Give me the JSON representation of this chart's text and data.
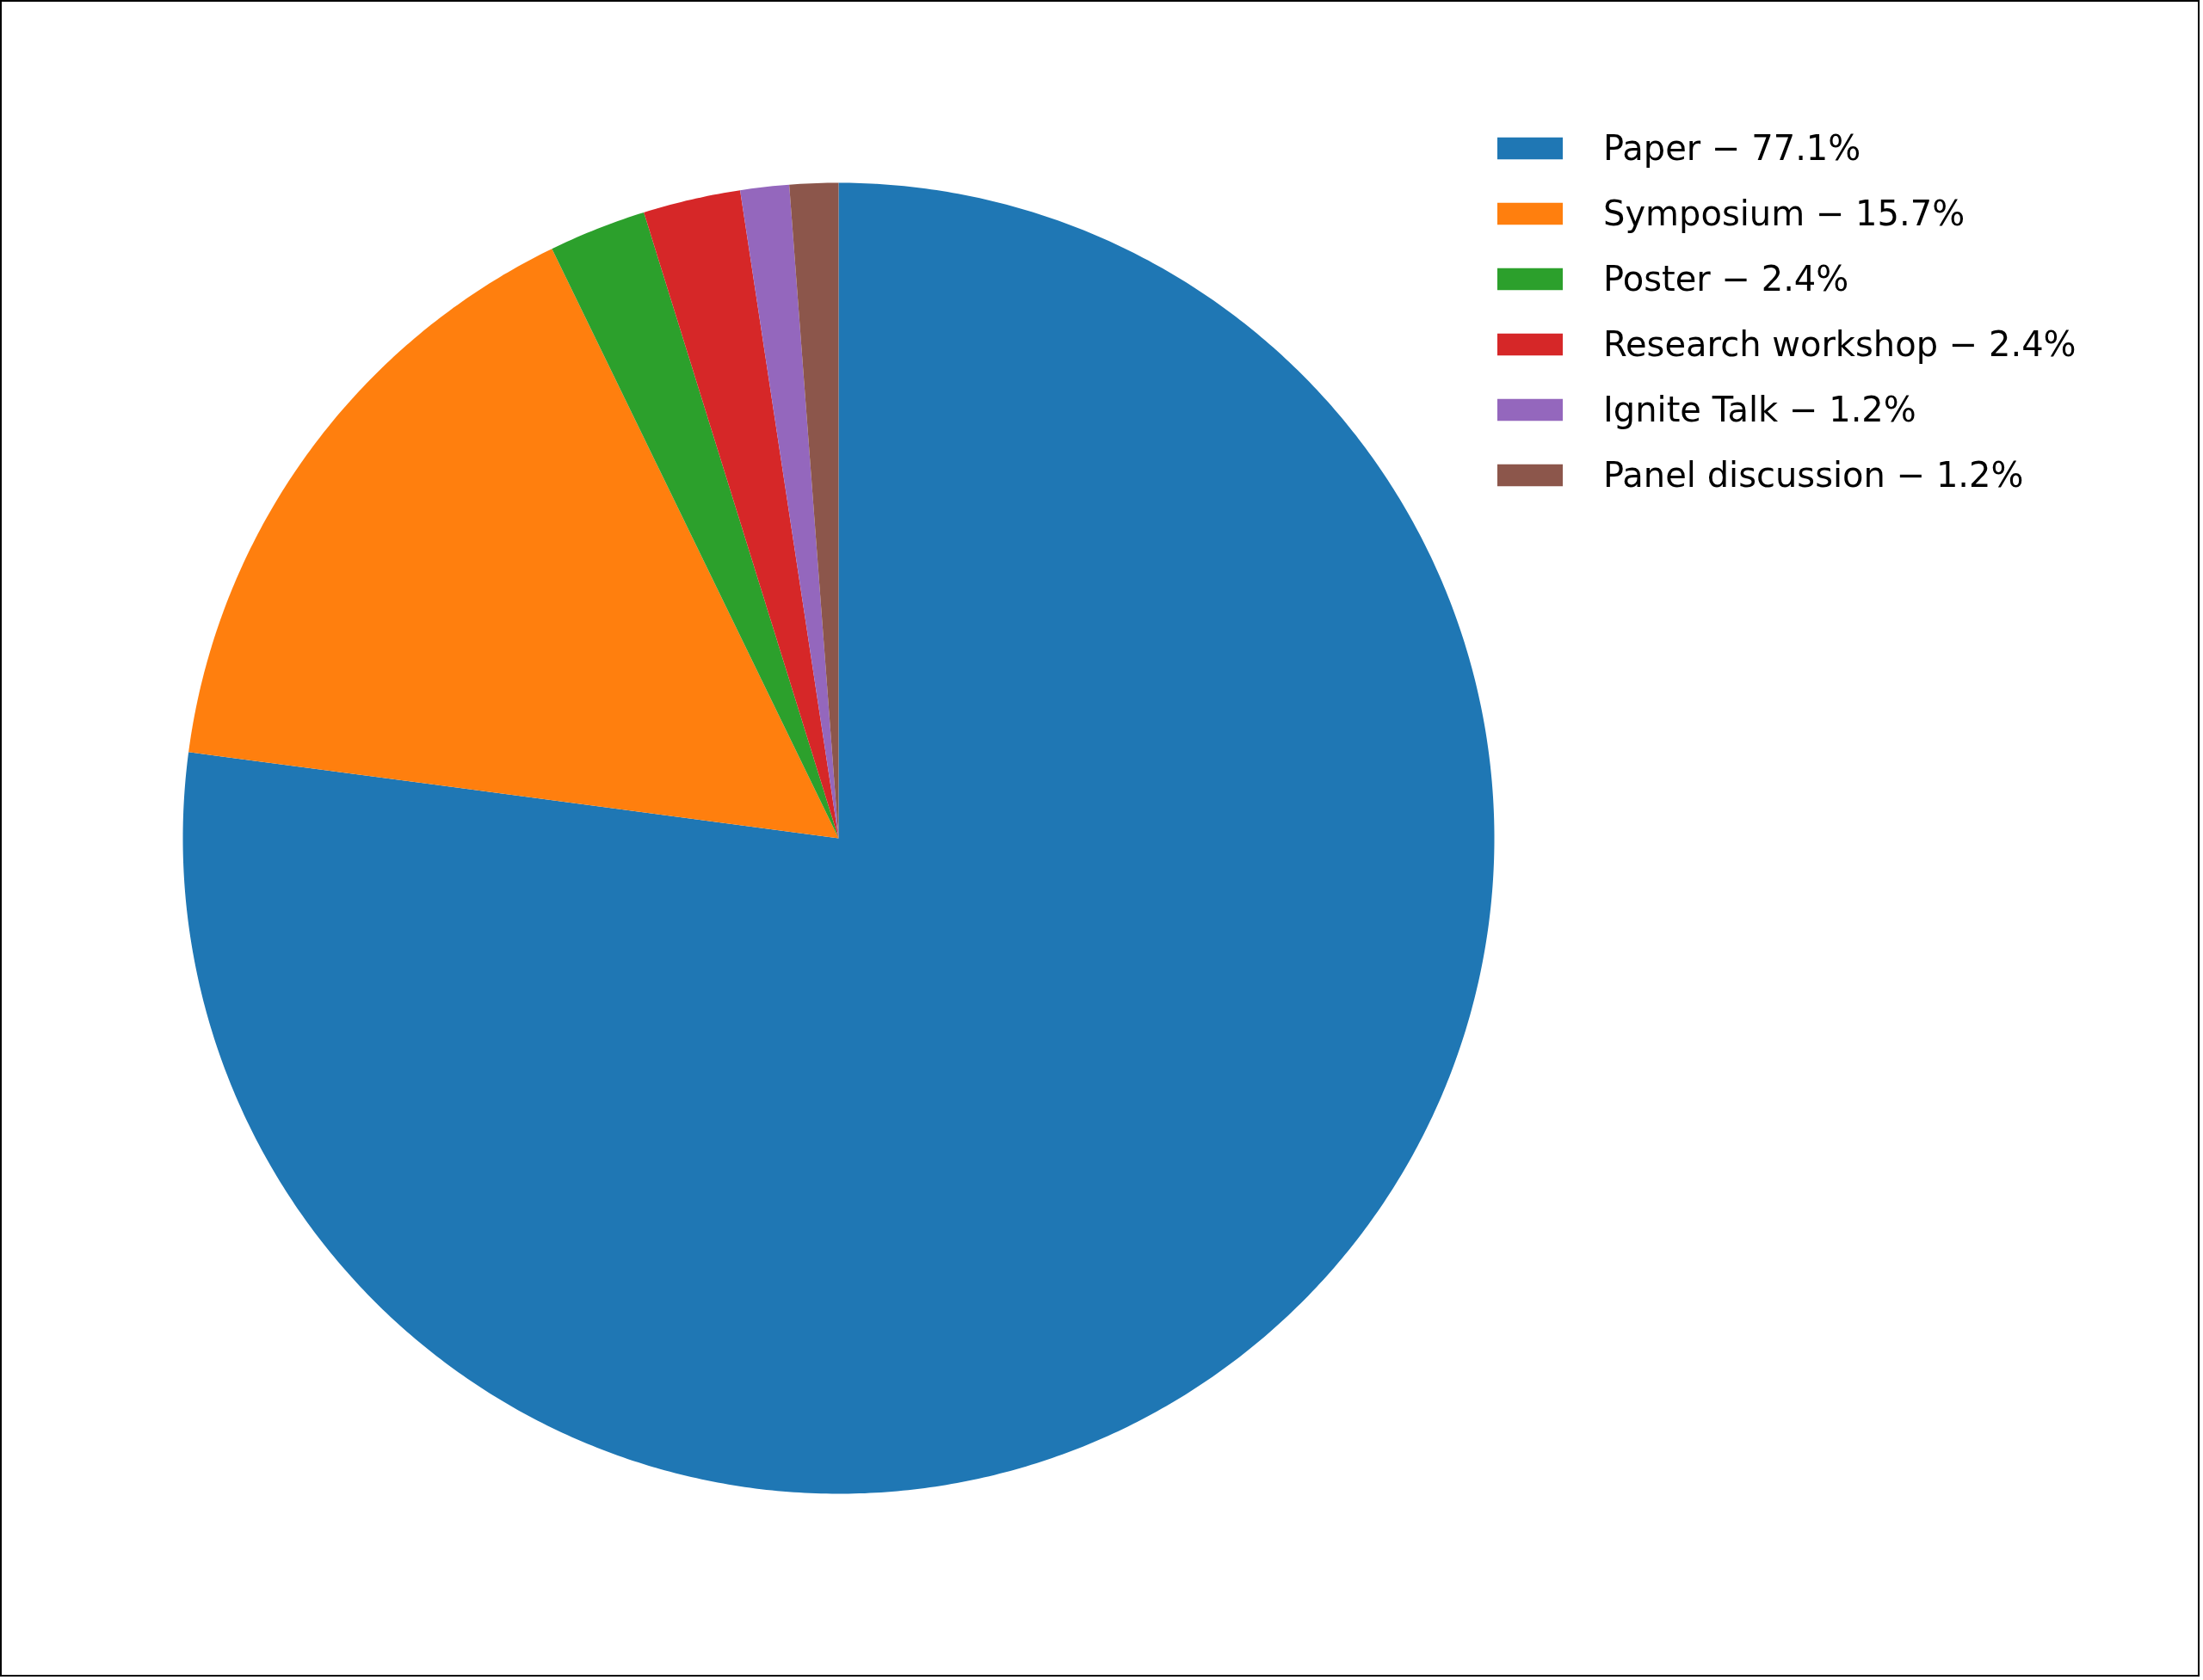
{
  "chart_data": {
    "type": "pie",
    "categories": [
      "Paper − 77.1%",
      "Symposium − 15.7%",
      "Poster − 2.4%",
      "Research workshop − 2.4%",
      "Ignite Talk − 1.2%",
      "Panel discussion − 1.2%"
    ],
    "values": [
      77.1,
      15.7,
      2.4,
      2.4,
      1.2,
      1.2
    ],
    "colors": [
      "#1f77b4",
      "#ff7f0e",
      "#2ca02c",
      "#d62728",
      "#9467bd",
      "#8c564b"
    ],
    "legend": "top right"
  }
}
